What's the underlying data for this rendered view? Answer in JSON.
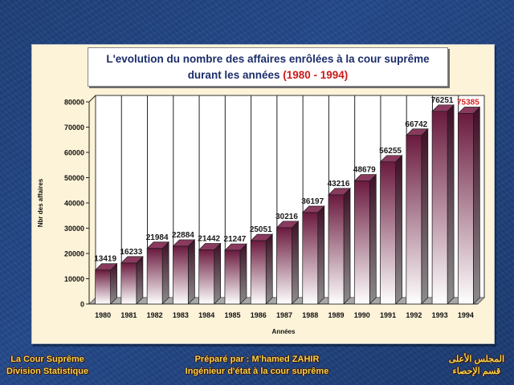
{
  "title": {
    "line1": "L'evolution du nombre des affaires enrôlées à la cour suprême",
    "line2_prefix": "durant les années ",
    "line2_highlight": "(1980 - 1994)"
  },
  "chart_data": {
    "type": "bar",
    "categories": [
      "1980",
      "1981",
      "1982",
      "1983",
      "1984",
      "1985",
      "1986",
      "1987",
      "1988",
      "1989",
      "1990",
      "1991",
      "1992",
      "1993",
      "1994"
    ],
    "values": [
      13419,
      16233,
      21984,
      22884,
      21442,
      21247,
      25051,
      30216,
      36197,
      43216,
      48679,
      56255,
      66742,
      76251,
      75385
    ],
    "value_labels": [
      "13419",
      "16233",
      "21984",
      "22884",
      "21442",
      "21247",
      "25051",
      "30216",
      "36197",
      "43216",
      "48679",
      "56255",
      "66742",
      "76251",
      "75385"
    ],
    "highlight_label_index": 14,
    "xlabel": "Années",
    "ylabel": "Nbr des affaires",
    "ylim": [
      0,
      80000
    ],
    "yticks": [
      "0",
      "10000",
      "20000",
      "30000",
      "40000",
      "50000",
      "60000",
      "70000",
      "80000"
    ],
    "grid": "vertical",
    "colors": {
      "bar_top": "#6a1a3e",
      "bar_bottom": "#ffffff",
      "label": "#1a1a1a",
      "highlight_label": "#dd1f1f",
      "wall": "#ffffff",
      "floor": "#a7a7a7"
    }
  },
  "footer": {
    "left_line1": "La Cour Suprême",
    "left_line2": "Division Statistique",
    "center_line1": "Préparé par : M'hamed ZAHIR",
    "center_line2": "Ingénieur d'état à la cour suprême",
    "right_line1": "المجلس الأعلى",
    "right_line2": "قسم الإحصاء"
  }
}
